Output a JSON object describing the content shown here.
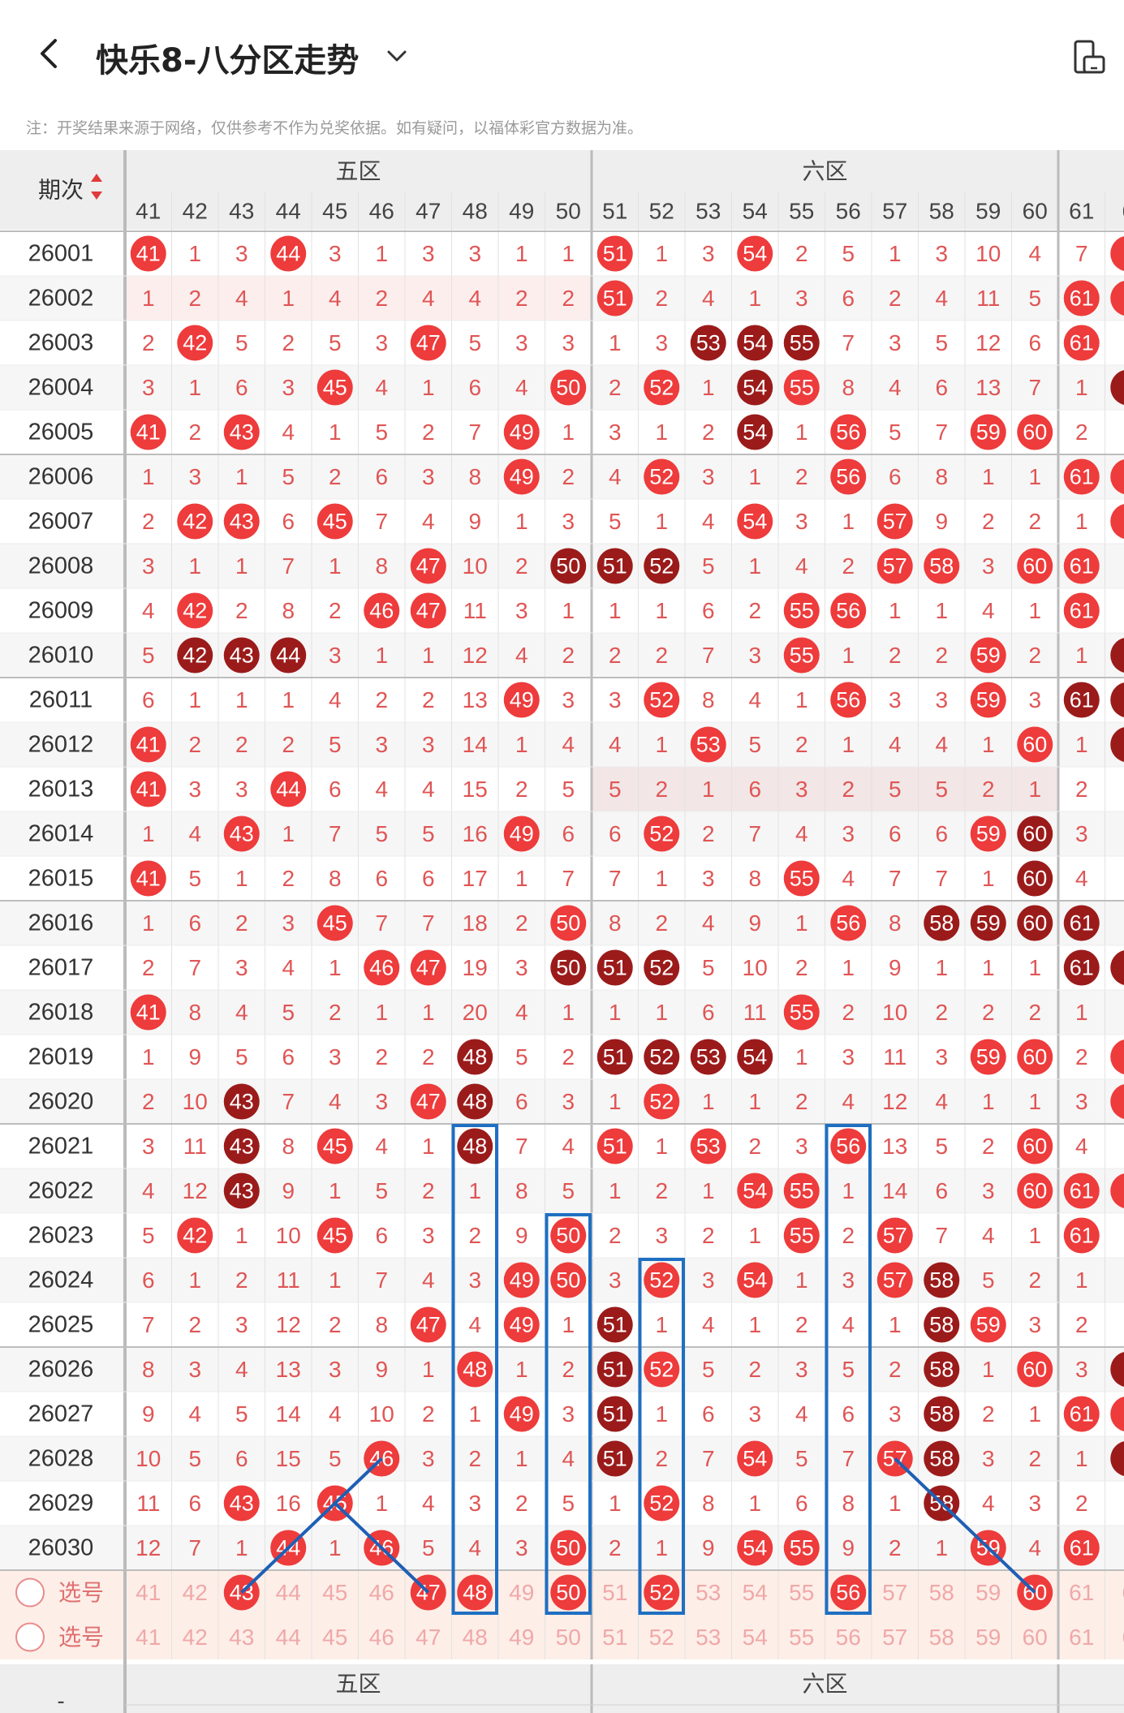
{
  "header": {
    "title": "快乐8-八分区走势"
  },
  "note": "注：开奖结果来源于网络，仅供参考不作为兑奖依据。如有疑问，以福体彩官方数据为准。",
  "table": {
    "period_header": "期次",
    "zone_headers": [
      "五区",
      "六区"
    ],
    "bottom_zone_headers": [
      "五区",
      "六区"
    ],
    "bottom_period_label": "-",
    "columns": [
      "41",
      "42",
      "43",
      "44",
      "45",
      "46",
      "47",
      "48",
      "49",
      "50",
      "51",
      "52",
      "53",
      "54",
      "55",
      "56",
      "57",
      "58",
      "59",
      "60",
      "61",
      "6"
    ],
    "rows": [
      {
        "period": "26001",
        "cells": [
          "41",
          "1",
          "3",
          "44",
          "3",
          "1",
          "3",
          "3",
          "1",
          "1",
          "51",
          "1",
          "3",
          "54",
          "2",
          "5",
          "1",
          "3",
          "10",
          "4",
          "7",
          ""
        ],
        "hits": "1r,4r,11r,14r,22r"
      },
      {
        "period": "26002",
        "cells": [
          "1",
          "2",
          "4",
          "1",
          "4",
          "2",
          "4",
          "4",
          "2",
          "2",
          "51",
          "2",
          "4",
          "1",
          "3",
          "6",
          "2",
          "4",
          "11",
          "5",
          "61",
          ""
        ],
        "hits": "11r,21r,22r"
      },
      {
        "period": "26003",
        "cells": [
          "2",
          "42",
          "5",
          "2",
          "5",
          "3",
          "47",
          "5",
          "3",
          "3",
          "1",
          "3",
          "53",
          "54",
          "55",
          "7",
          "3",
          "5",
          "12",
          "6",
          "61",
          ""
        ],
        "hits": "2r,7r,13d,14d,15d,21r"
      },
      {
        "period": "26004",
        "cells": [
          "3",
          "1",
          "6",
          "3",
          "45",
          "4",
          "1",
          "6",
          "4",
          "50",
          "2",
          "52",
          "1",
          "54",
          "55",
          "8",
          "4",
          "6",
          "13",
          "7",
          "1",
          ""
        ],
        "hits": "5r,10r,12r,14d,15r,22d"
      },
      {
        "period": "26005",
        "cells": [
          "41",
          "2",
          "43",
          "4",
          "1",
          "5",
          "2",
          "7",
          "49",
          "1",
          "3",
          "1",
          "2",
          "54",
          "1",
          "56",
          "5",
          "7",
          "59",
          "60",
          "2",
          ""
        ],
        "hits": "1r,3r,9r,14d,16r,19r,20r"
      },
      {
        "period": "26006",
        "cells": [
          "1",
          "3",
          "1",
          "5",
          "2",
          "6",
          "3",
          "8",
          "49",
          "2",
          "4",
          "52",
          "3",
          "1",
          "2",
          "56",
          "6",
          "8",
          "1",
          "1",
          "61",
          ""
        ],
        "hits": "9r,12r,16r,21r,22r"
      },
      {
        "period": "26007",
        "cells": [
          "2",
          "42",
          "43",
          "6",
          "45",
          "7",
          "4",
          "9",
          "1",
          "3",
          "5",
          "1",
          "4",
          "54",
          "3",
          "1",
          "57",
          "9",
          "2",
          "2",
          "1",
          ""
        ],
        "hits": "2r,3r,5r,14r,17r,22r"
      },
      {
        "period": "26008",
        "cells": [
          "3",
          "1",
          "1",
          "7",
          "1",
          "8",
          "47",
          "10",
          "2",
          "50",
          "51",
          "52",
          "5",
          "1",
          "4",
          "2",
          "57",
          "58",
          "3",
          "60",
          "61",
          ""
        ],
        "hits": "7r,10d,11d,12d,17r,18r,20r,21r"
      },
      {
        "period": "26009",
        "cells": [
          "4",
          "42",
          "2",
          "8",
          "2",
          "46",
          "47",
          "11",
          "3",
          "1",
          "1",
          "1",
          "6",
          "2",
          "55",
          "56",
          "1",
          "1",
          "4",
          "1",
          "61",
          ""
        ],
        "hits": "2r,6r,7r,15r,16r,21r"
      },
      {
        "period": "26010",
        "cells": [
          "5",
          "42",
          "43",
          "44",
          "3",
          "1",
          "1",
          "12",
          "4",
          "2",
          "2",
          "2",
          "7",
          "3",
          "55",
          "1",
          "2",
          "2",
          "59",
          "2",
          "1",
          ""
        ],
        "hits": "2d,3d,4d,15r,19r,22d"
      },
      {
        "period": "26011",
        "cells": [
          "6",
          "1",
          "1",
          "1",
          "4",
          "2",
          "2",
          "13",
          "49",
          "3",
          "3",
          "52",
          "8",
          "4",
          "1",
          "56",
          "3",
          "3",
          "59",
          "3",
          "61",
          ""
        ],
        "hits": "9r,12r,16r,19r,21d,22d"
      },
      {
        "period": "26012",
        "cells": [
          "41",
          "2",
          "2",
          "2",
          "5",
          "3",
          "3",
          "14",
          "1",
          "4",
          "4",
          "1",
          "53",
          "5",
          "2",
          "1",
          "4",
          "4",
          "1",
          "60",
          "1",
          ""
        ],
        "hits": "1r,13r,20r,22d"
      },
      {
        "period": "26013",
        "cells": [
          "41",
          "3",
          "3",
          "44",
          "6",
          "4",
          "4",
          "15",
          "2",
          "5",
          "5",
          "2",
          "1",
          "6",
          "3",
          "2",
          "5",
          "5",
          "2",
          "1",
          "2",
          ""
        ],
        "hits": "1r,4r"
      },
      {
        "period": "26014",
        "cells": [
          "1",
          "4",
          "43",
          "1",
          "7",
          "5",
          "5",
          "16",
          "49",
          "6",
          "6",
          "52",
          "2",
          "7",
          "4",
          "3",
          "6",
          "6",
          "59",
          "60",
          "3",
          ""
        ],
        "hits": "3r,9r,12r,19r,20d"
      },
      {
        "period": "26015",
        "cells": [
          "41",
          "5",
          "1",
          "2",
          "8",
          "6",
          "6",
          "17",
          "1",
          "7",
          "7",
          "1",
          "3",
          "8",
          "55",
          "4",
          "7",
          "7",
          "1",
          "60",
          "4",
          ""
        ],
        "hits": "1r,15r,20d"
      },
      {
        "period": "26016",
        "cells": [
          "1",
          "6",
          "2",
          "3",
          "45",
          "7",
          "7",
          "18",
          "2",
          "50",
          "8",
          "2",
          "4",
          "9",
          "1",
          "56",
          "8",
          "58",
          "59",
          "60",
          "61",
          ""
        ],
        "hits": "5r,10r,16r,18d,19d,20d,21d"
      },
      {
        "period": "26017",
        "cells": [
          "2",
          "7",
          "3",
          "4",
          "1",
          "46",
          "47",
          "19",
          "3",
          "50",
          "51",
          "52",
          "5",
          "10",
          "2",
          "1",
          "9",
          "1",
          "1",
          "1",
          "61",
          ""
        ],
        "hits": "6r,7r,10d,11d,12d,21d,22d"
      },
      {
        "period": "26018",
        "cells": [
          "41",
          "8",
          "4",
          "5",
          "2",
          "1",
          "1",
          "20",
          "4",
          "1",
          "1",
          "1",
          "6",
          "11",
          "55",
          "2",
          "10",
          "2",
          "2",
          "2",
          "1",
          ""
        ],
        "hits": "1r,15r"
      },
      {
        "period": "26019",
        "cells": [
          "1",
          "9",
          "5",
          "6",
          "3",
          "2",
          "2",
          "48",
          "5",
          "2",
          "51",
          "52",
          "53",
          "54",
          "1",
          "3",
          "11",
          "3",
          "59",
          "60",
          "2",
          ""
        ],
        "hits": "8d,11d,12d,13d,14d,19r,20r,22r"
      },
      {
        "period": "26020",
        "cells": [
          "2",
          "10",
          "43",
          "7",
          "4",
          "3",
          "47",
          "48",
          "6",
          "3",
          "1",
          "52",
          "1",
          "1",
          "2",
          "4",
          "12",
          "4",
          "1",
          "1",
          "3",
          ""
        ],
        "hits": "3d,7r,8d,12r,22r"
      },
      {
        "period": "26021",
        "cells": [
          "3",
          "11",
          "43",
          "8",
          "45",
          "4",
          "1",
          "48",
          "7",
          "4",
          "51",
          "1",
          "53",
          "2",
          "3",
          "56",
          "13",
          "5",
          "2",
          "60",
          "4",
          ""
        ],
        "hits": "3d,5r,8d,11r,13r,16r,20r"
      },
      {
        "period": "26022",
        "cells": [
          "4",
          "12",
          "43",
          "9",
          "1",
          "5",
          "2",
          "1",
          "8",
          "5",
          "1",
          "2",
          "1",
          "54",
          "55",
          "1",
          "14",
          "6",
          "3",
          "60",
          "61",
          ""
        ],
        "hits": "3d,14r,15r,20r,21r,22r"
      },
      {
        "period": "26023",
        "cells": [
          "5",
          "42",
          "1",
          "10",
          "45",
          "6",
          "3",
          "2",
          "9",
          "50",
          "2",
          "3",
          "2",
          "1",
          "55",
          "2",
          "57",
          "7",
          "4",
          "1",
          "61",
          ""
        ],
        "hits": "2r,5r,10r,15r,17r,21r"
      },
      {
        "period": "26024",
        "cells": [
          "6",
          "1",
          "2",
          "11",
          "1",
          "7",
          "4",
          "3",
          "49",
          "50",
          "3",
          "52",
          "3",
          "54",
          "1",
          "3",
          "57",
          "58",
          "5",
          "2",
          "1",
          ""
        ],
        "hits": "9r,10r,12r,14r,17r,18d"
      },
      {
        "period": "26025",
        "cells": [
          "7",
          "2",
          "3",
          "12",
          "2",
          "8",
          "47",
          "4",
          "49",
          "1",
          "51",
          "1",
          "4",
          "1",
          "2",
          "4",
          "1",
          "58",
          "59",
          "3",
          "2",
          ""
        ],
        "hits": "7r,9r,11d,18d,19r"
      },
      {
        "period": "26026",
        "cells": [
          "8",
          "3",
          "4",
          "13",
          "3",
          "9",
          "1",
          "48",
          "1",
          "2",
          "51",
          "52",
          "5",
          "2",
          "3",
          "5",
          "2",
          "58",
          "1",
          "60",
          "3",
          ""
        ],
        "hits": "8r,11d,12r,18d,20r,22d"
      },
      {
        "period": "26027",
        "cells": [
          "9",
          "4",
          "5",
          "14",
          "4",
          "10",
          "2",
          "1",
          "49",
          "3",
          "51",
          "1",
          "6",
          "3",
          "4",
          "6",
          "3",
          "58",
          "2",
          "1",
          "61",
          ""
        ],
        "hits": "9r,11d,18d,21r,22r"
      },
      {
        "period": "26028",
        "cells": [
          "10",
          "5",
          "6",
          "15",
          "5",
          "46",
          "3",
          "2",
          "1",
          "4",
          "51",
          "2",
          "7",
          "54",
          "5",
          "7",
          "57",
          "58",
          "3",
          "2",
          "1",
          ""
        ],
        "hits": "6r,11d,14r,17r,18d,22d"
      },
      {
        "period": "26029",
        "cells": [
          "11",
          "6",
          "43",
          "16",
          "45",
          "1",
          "4",
          "3",
          "2",
          "5",
          "1",
          "52",
          "8",
          "1",
          "6",
          "8",
          "1",
          "58",
          "4",
          "3",
          "2",
          ""
        ],
        "hits": "3r,5r,12r,18d"
      },
      {
        "period": "26030",
        "cells": [
          "12",
          "7",
          "1",
          "44",
          "1",
          "46",
          "5",
          "4",
          "3",
          "50",
          "2",
          "1",
          "9",
          "54",
          "55",
          "9",
          "2",
          "1",
          "59",
          "4",
          "61",
          ""
        ],
        "hits": "4r,6r,10r,14r,15r,19r,21r"
      }
    ],
    "select_rows": [
      {
        "label": "选号",
        "hits": "3r,7r,8r,10r,12r,16r,20r"
      },
      {
        "label": "选号",
        "hits": ""
      }
    ]
  },
  "colors": {
    "red_ball": "#ee3b3b",
    "dark_ball": "#9b1b1b",
    "miss_text": "#e05555",
    "highlight_box": "#1f6fc2",
    "line": "#1f5fb5",
    "header_bg": "#eeeeee",
    "select_bg": "#fdeee8"
  }
}
